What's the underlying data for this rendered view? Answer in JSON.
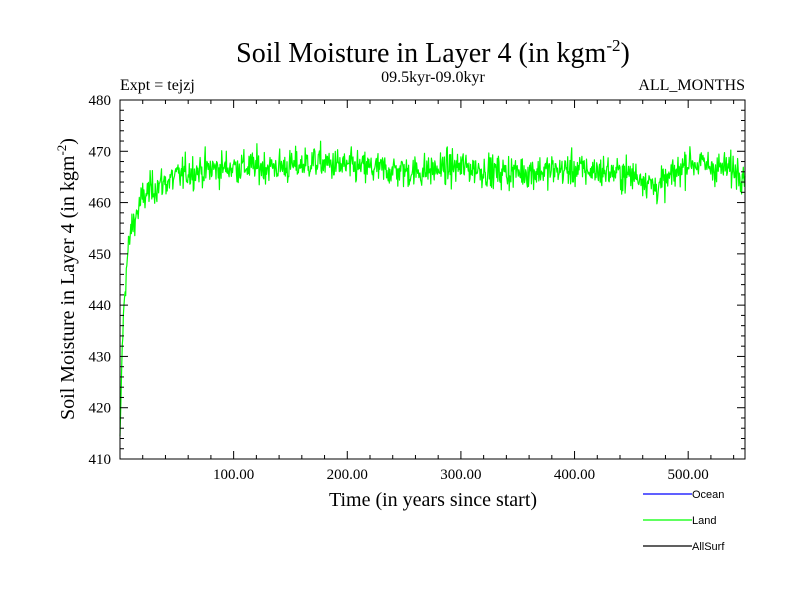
{
  "chart_data": {
    "type": "line",
    "title": "Soil Moisture in Layer 4 (in kgm",
    "title_sup": "-2",
    "title_end": ")",
    "ylabel": "Soil Moisture in Layer 4 (in kgm",
    "ylabel_sup": "-2",
    "ylabel_end": ")",
    "xlabel": "Time (in years since start)",
    "expt_label": "Expt = tejzj",
    "period_label": "09.5kyr-09.0kyr",
    "months_label": "ALL_MONTHS",
    "xlim": [
      0,
      550
    ],
    "ylim": [
      410,
      480
    ],
    "x_ticks": [
      100,
      200,
      300,
      400,
      500
    ],
    "x_tick_labels": [
      "100.00",
      "200.00",
      "300.00",
      "400.00",
      "500.00"
    ],
    "y_ticks": [
      410,
      420,
      430,
      440,
      450,
      460,
      470,
      480
    ],
    "y_tick_labels": [
      "410",
      "420",
      "430",
      "440",
      "450",
      "460",
      "470",
      "480"
    ],
    "grid": false,
    "legend_position": "bottom-right",
    "legend": [
      {
        "name": "Ocean",
        "color": "#0000ff"
      },
      {
        "name": "Land",
        "color": "#00ff00"
      },
      {
        "name": "AllSurf",
        "color": "#000000"
      }
    ],
    "series": [
      {
        "name": "Land",
        "color": "#00ff00",
        "x": [
          0,
          2,
          4,
          6,
          8,
          10,
          15,
          20,
          25,
          30,
          40,
          50,
          60,
          80,
          100,
          120,
          150,
          170,
          200,
          230,
          260,
          300,
          330,
          360,
          400,
          430,
          460,
          470,
          480,
          500,
          520,
          550
        ],
        "y": [
          414,
          432,
          442,
          448,
          452,
          455,
          458,
          461,
          462,
          463,
          464,
          465,
          466,
          466.5,
          467,
          467,
          467,
          468,
          467,
          466.5,
          466,
          467,
          466,
          466,
          466.5,
          466,
          465,
          463,
          464,
          468,
          467,
          466
        ]
      }
    ]
  }
}
